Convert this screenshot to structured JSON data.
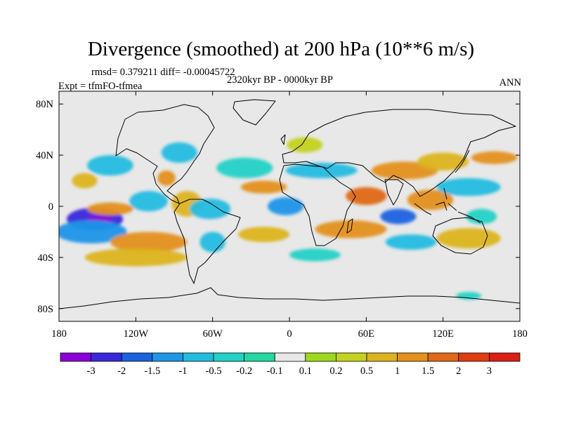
{
  "title": "Divergence (smoothed) at 200 hPa (10**6 m/s)",
  "stats_line": "rmsd= 0.379211 diff= -0.00045722",
  "experiment_line": "Expt = tfmFO-tfmea",
  "period_line": "2320kyr BP - 0000kyr BP",
  "season_label": "ANN",
  "chart_data": {
    "type": "heatmap",
    "title": "Divergence (smoothed) at 200 hPa (10**6 m/s)",
    "variable": "Divergence (smoothed)",
    "level": "200 hPa",
    "units": "10**6 m/s",
    "x_range": [
      -180,
      180
    ],
    "y_range": [
      -90,
      90
    ],
    "x_ticks": [
      {
        "value": -180,
        "label": "180"
      },
      {
        "value": -120,
        "label": "120W"
      },
      {
        "value": -60,
        "label": "60W"
      },
      {
        "value": 0,
        "label": "0"
      },
      {
        "value": 60,
        "label": "60E"
      },
      {
        "value": 120,
        "label": "120E"
      },
      {
        "value": 180,
        "label": "180"
      }
    ],
    "y_ticks": [
      {
        "value": 80,
        "label": "80N"
      },
      {
        "value": 40,
        "label": "40N"
      },
      {
        "value": 0,
        "label": "0"
      },
      {
        "value": -40,
        "label": "40S"
      },
      {
        "value": -80,
        "label": "80S"
      }
    ],
    "colorbar": {
      "labels": [
        "-3",
        "-2",
        "-1.5",
        "-1",
        "-0.5",
        "-0.2",
        "-0.1",
        "0.1",
        "0.2",
        "0.5",
        "1",
        "1.5",
        "2",
        "3"
      ],
      "colors": [
        "#8c00dc",
        "#3a28dc",
        "#1a62e0",
        "#1e96e8",
        "#22bce0",
        "#22d2c6",
        "#22d8a0",
        "#e8e8e8",
        "#9ed81e",
        "#c4d220",
        "#dcb41e",
        "#e4901c",
        "#e06818",
        "#e03c14",
        "#dc1e14"
      ]
    },
    "background": "#e8e8e8",
    "regions": [
      {
        "lon": -152,
        "lat": -10,
        "rlon": 22,
        "rlat": 9,
        "v": -2.2
      },
      {
        "lon": -148,
        "lat": -11,
        "rlon": 10,
        "rlat": 4,
        "v": -3.2
      },
      {
        "lon": -155,
        "lat": -20,
        "rlon": 28,
        "rlat": 9,
        "v": -1.2
      },
      {
        "lon": -140,
        "lat": -2,
        "rlon": 18,
        "rlat": 5,
        "v": 1.2
      },
      {
        "lon": -110,
        "lat": -28,
        "rlon": 30,
        "rlat": 8,
        "v": 1.2
      },
      {
        "lon": -120,
        "lat": -40,
        "rlon": 40,
        "rlat": 7,
        "v": 0.6
      },
      {
        "lon": -110,
        "lat": 4,
        "rlon": 15,
        "rlat": 8,
        "v": -0.6
      },
      {
        "lon": -140,
        "lat": 32,
        "rlon": 18,
        "rlat": 8,
        "v": -0.8
      },
      {
        "lon": -160,
        "lat": 20,
        "rlon": 10,
        "rlat": 6,
        "v": 0.6
      },
      {
        "lon": -96,
        "lat": 22,
        "rlon": 7,
        "rlat": 6,
        "v": 1.3
      },
      {
        "lon": -86,
        "lat": 42,
        "rlon": 14,
        "rlat": 8,
        "v": -0.8
      },
      {
        "lon": -80,
        "lat": 2,
        "rlon": 12,
        "rlat": 10,
        "v": 0.6
      },
      {
        "lon": -62,
        "lat": -2,
        "rlon": 16,
        "rlat": 8,
        "v": -0.8
      },
      {
        "lon": -60,
        "lat": -28,
        "rlon": 10,
        "rlat": 8,
        "v": -0.6
      },
      {
        "lon": -20,
        "lat": -22,
        "rlon": 20,
        "rlat": 6,
        "v": 0.8
      },
      {
        "lon": -35,
        "lat": 30,
        "rlon": 22,
        "rlat": 8,
        "v": -0.5
      },
      {
        "lon": -20,
        "lat": 15,
        "rlon": 18,
        "rlat": 5,
        "v": 1.2
      },
      {
        "lon": -3,
        "lat": 0,
        "rlon": 14,
        "rlat": 7,
        "v": -1.2
      },
      {
        "lon": 12,
        "lat": 48,
        "rlon": 14,
        "rlat": 6,
        "v": 0.4
      },
      {
        "lon": 25,
        "lat": 28,
        "rlon": 28,
        "rlat": 6,
        "v": -0.7
      },
      {
        "lon": 48,
        "lat": -18,
        "rlon": 28,
        "rlat": 7,
        "v": 1.2
      },
      {
        "lon": 20,
        "lat": -38,
        "rlon": 20,
        "rlat": 5,
        "v": -0.4
      },
      {
        "lon": 60,
        "lat": 8,
        "rlon": 16,
        "rlat": 7,
        "v": 1.6
      },
      {
        "lon": 85,
        "lat": -8,
        "rlon": 14,
        "rlat": 6,
        "v": -1.8
      },
      {
        "lon": 95,
        "lat": -28,
        "rlon": 20,
        "rlat": 6,
        "v": -0.6
      },
      {
        "lon": 90,
        "lat": 28,
        "rlon": 26,
        "rlat": 7,
        "v": 1.2
      },
      {
        "lon": 120,
        "lat": 35,
        "rlon": 20,
        "rlat": 7,
        "v": 0.8
      },
      {
        "lon": 110,
        "lat": 5,
        "rlon": 18,
        "rlat": 8,
        "v": 1.3
      },
      {
        "lon": 140,
        "lat": 15,
        "rlon": 25,
        "rlat": 7,
        "v": -0.8
      },
      {
        "lon": 140,
        "lat": -25,
        "rlon": 25,
        "rlat": 8,
        "v": 0.8
      },
      {
        "lon": 150,
        "lat": -8,
        "rlon": 12,
        "rlat": 6,
        "v": -0.5
      },
      {
        "lon": 140,
        "lat": -70,
        "rlon": 10,
        "rlat": 3,
        "v": -0.4
      },
      {
        "lon": 160,
        "lat": 38,
        "rlon": 18,
        "rlat": 5,
        "v": 1.2
      }
    ]
  }
}
